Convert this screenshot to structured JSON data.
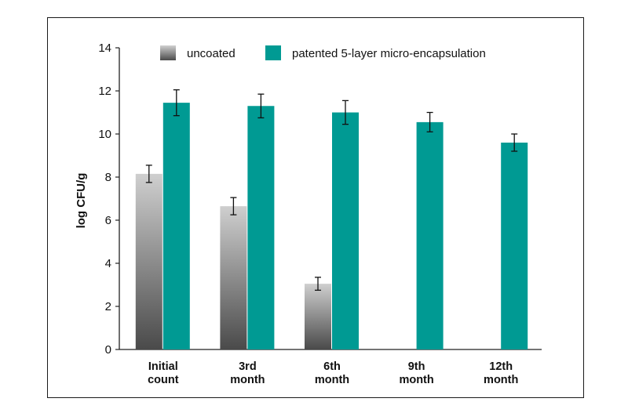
{
  "chart_data": {
    "type": "bar",
    "categories": [
      [
        "Initial",
        "count"
      ],
      [
        "3rd",
        "month"
      ],
      [
        "6th",
        "month"
      ],
      [
        "9th",
        "month"
      ],
      [
        "12th",
        "month"
      ]
    ],
    "series": [
      {
        "name": "uncoated",
        "values": [
          8.15,
          6.65,
          3.05,
          null,
          null
        ],
        "errors": [
          0.4,
          0.4,
          0.3,
          null,
          null
        ]
      },
      {
        "name": "patented 5-layer micro-encapsulation",
        "values": [
          11.45,
          11.3,
          11.0,
          10.55,
          9.6
        ],
        "errors": [
          0.6,
          0.55,
          0.55,
          0.45,
          0.4
        ]
      }
    ],
    "ylabel": "log CFU/g",
    "xlabel": "",
    "ylim": [
      0,
      14
    ],
    "yticks": [
      0,
      2,
      4,
      6,
      8,
      10,
      12,
      14
    ],
    "grid": false,
    "legend": "top",
    "colors": {
      "uncoated_top": "#cfcfcf",
      "uncoated_bottom": "#4a4a4a",
      "coated": "#009a93"
    }
  }
}
